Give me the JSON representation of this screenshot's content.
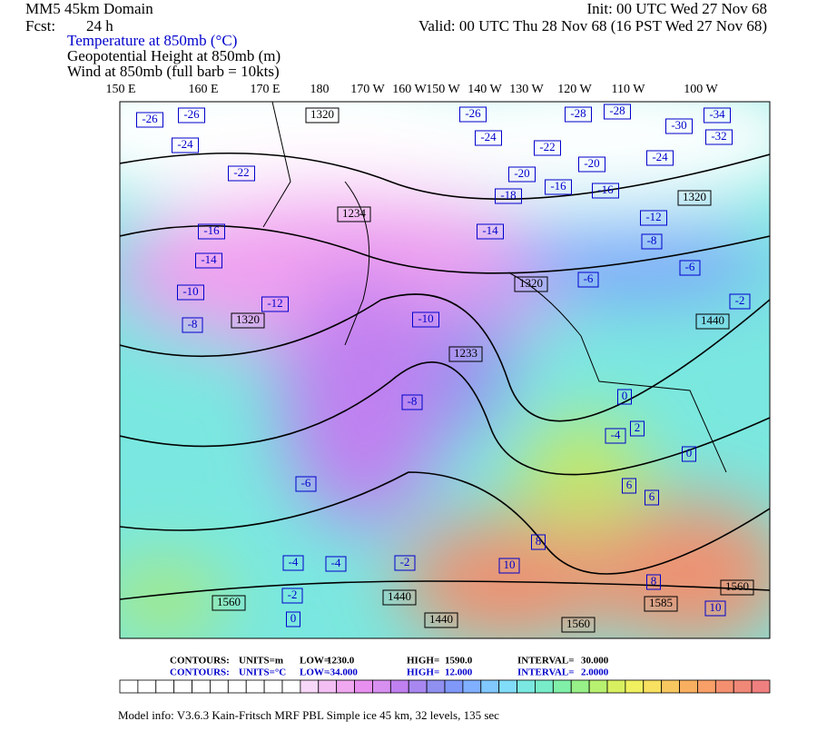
{
  "header": {
    "domain": "MM5 45km Domain",
    "init": "Init: 00 UTC Wed 27 Nov 68",
    "fcst_label": "Fcst:",
    "fcst_value": "24 h",
    "valid": "Valid: 00 UTC Thu 28 Nov 68 (16 PST Wed 27 Nov 68)",
    "fields": [
      "Temperature at 850mb (°C)",
      "Geopotential Height at 850mb (m)",
      "Wind at 850mb (full barb = 10kts)"
    ]
  },
  "longitudes": [
    "150 E",
    "160 E",
    "170 E",
    "180",
    "170 W",
    "160 W",
    "150 W",
    "140 W",
    "130 W",
    "120 W",
    "110 W",
    "100 W"
  ],
  "temperature_labels": [
    "-26",
    "-26",
    "-24",
    "-22",
    "-16",
    "-14",
    "-10",
    "-8",
    "-12",
    "-26",
    "-24",
    "-28",
    "-28",
    "-22",
    "-20",
    "-18",
    "-16",
    "-16",
    "-20",
    "-24",
    "-30",
    "-34",
    "-32",
    "-14",
    "-12",
    "-8",
    "-6",
    "-6",
    "-2",
    "-10",
    "-8",
    "-6",
    "-4",
    "-4",
    "-2",
    "0",
    "-2",
    "0",
    "2",
    "-4",
    "0",
    "6",
    "6",
    "8",
    "10",
    "8",
    "10"
  ],
  "height_labels": [
    "1320",
    "1320",
    "1234",
    "1320",
    "1320",
    "1233",
    "1440",
    "1560",
    "1440",
    "1440",
    "1560",
    "1585",
    "1560"
  ],
  "contour_info": [
    {
      "label": "CONTOURS:",
      "units": "UNITS=m",
      "low": "LOW=",
      "low_value": "1230.0",
      "high": "HIGH=",
      "high_value": "1590.0",
      "interval": "INTERVAL=",
      "interval_value": "30.000"
    },
    {
      "label": "CONTOURS:",
      "units": "UNITS=°C",
      "low": "LOW=",
      "low_value": "-34.000",
      "high": "HIGH=",
      "high_value": "12.000",
      "interval": "INTERVAL=",
      "interval_value": "2.0000"
    }
  ],
  "model_info": "Model info: V3.6.3 Kain-Fritsch MRF PBL     Simple ice    45 km,  32 levels,  135 sec"
}
